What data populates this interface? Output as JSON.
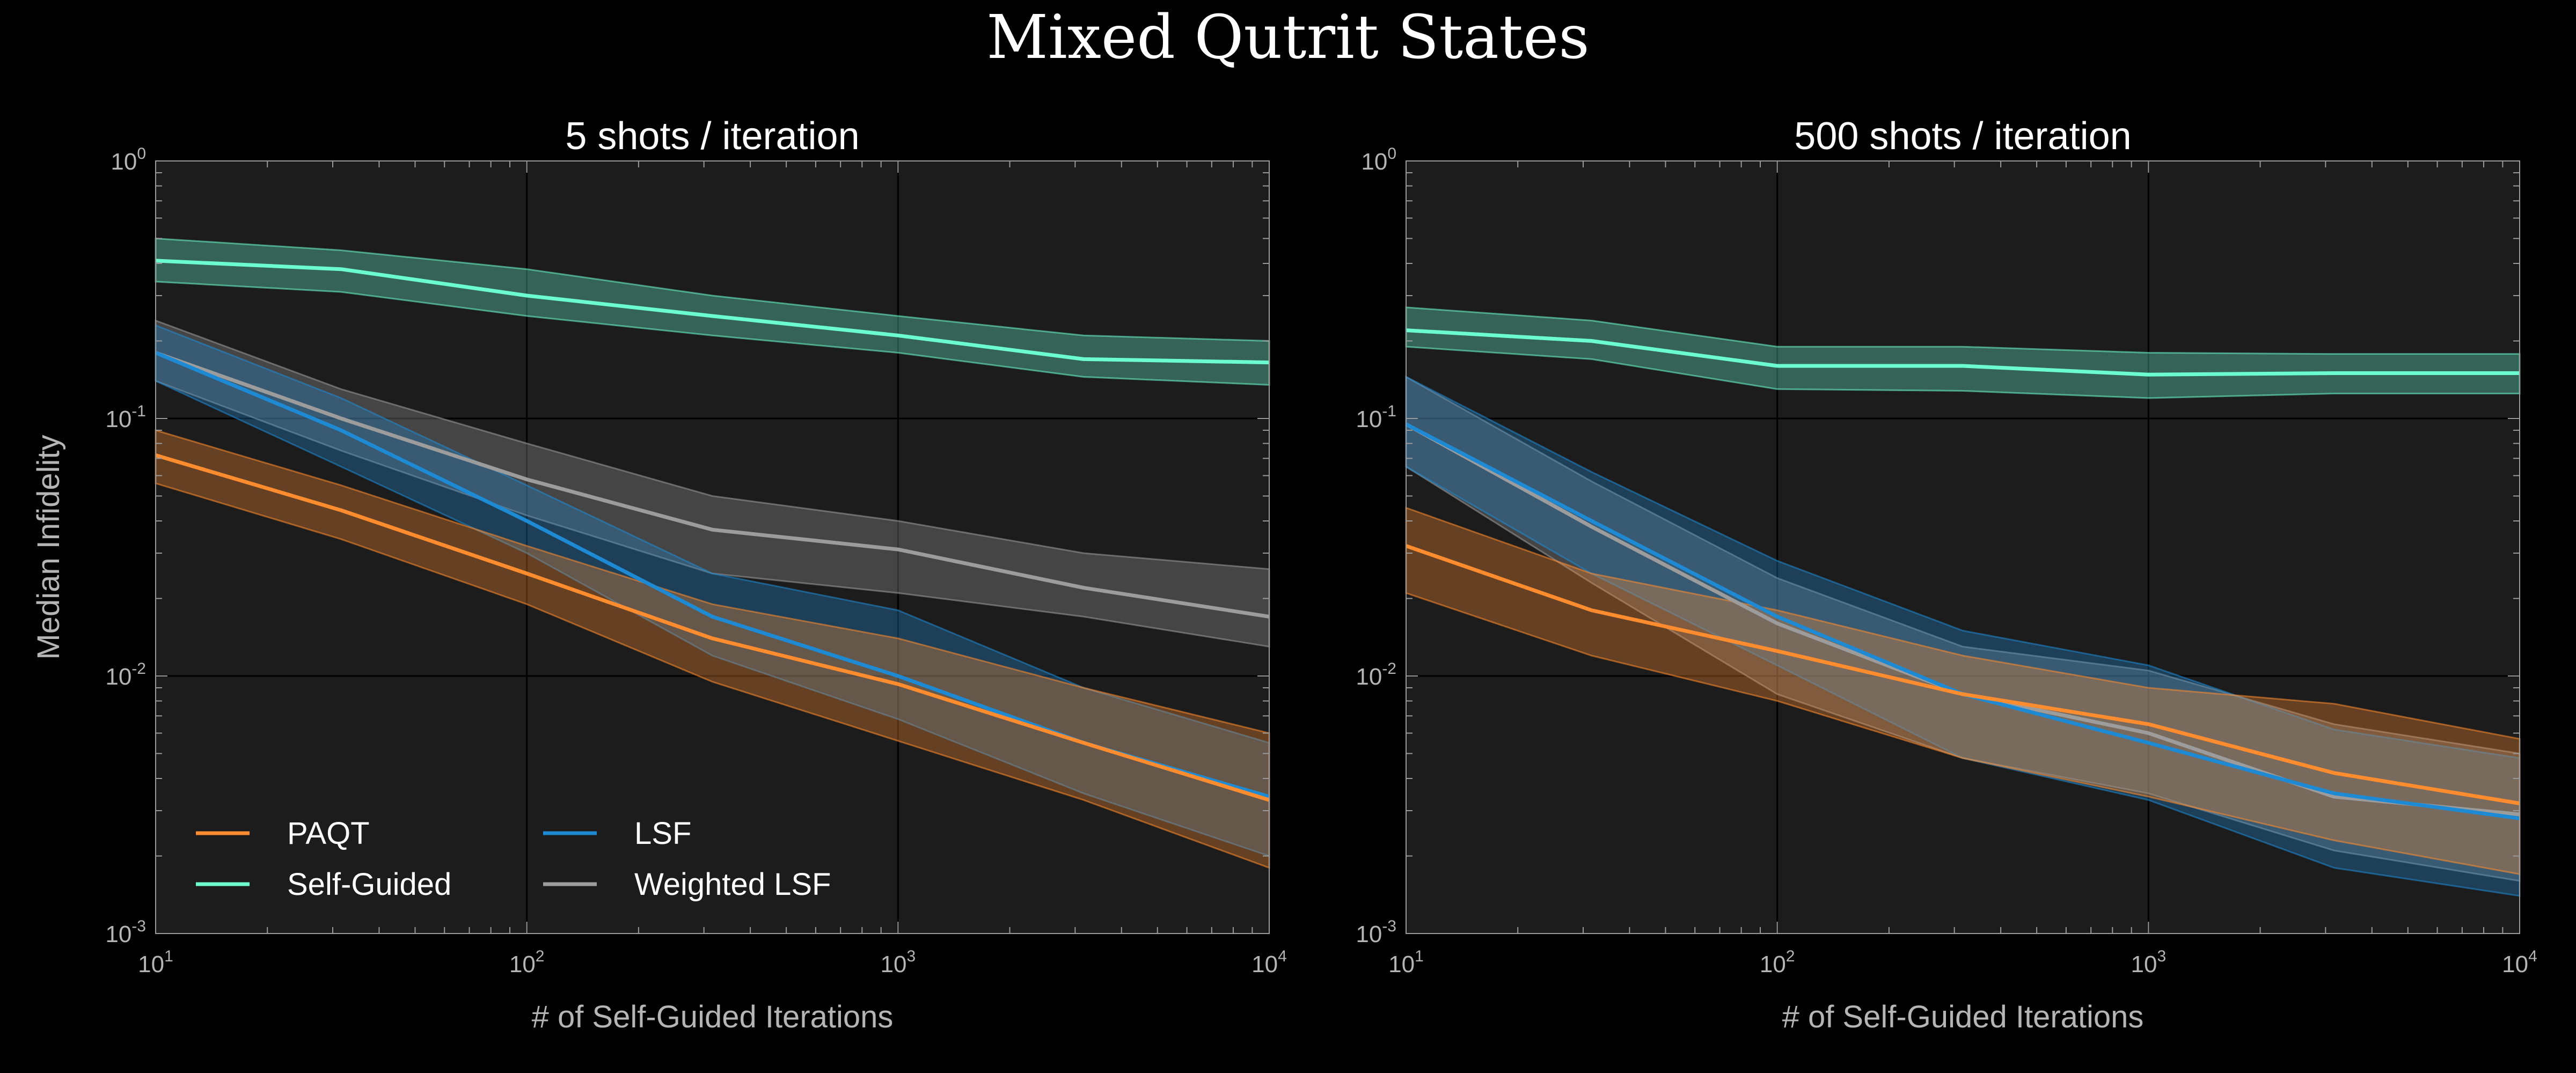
{
  "figure_title": "Mixed Qutrit States",
  "chart_data": [
    {
      "type": "line",
      "title": "5 shots / iteration",
      "xlabel": "# of Self-Guided Iterations",
      "ylabel": "Median Infidelity",
      "xscale": "log",
      "yscale": "log",
      "xlim": [
        10,
        10000
      ],
      "ylim": [
        0.001,
        1
      ],
      "x_ticks": [
        {
          "base": "10",
          "exp": "1"
        },
        {
          "base": "10",
          "exp": "2"
        },
        {
          "base": "10",
          "exp": "3"
        },
        {
          "base": "10",
          "exp": "4"
        }
      ],
      "y_ticks": [
        {
          "base": "10",
          "exp": "0"
        },
        {
          "base": "10",
          "exp": "-1"
        },
        {
          "base": "10",
          "exp": "-2"
        },
        {
          "base": "10",
          "exp": "-3"
        }
      ],
      "grid": true,
      "legend_position": "lower-left",
      "x": [
        10,
        31.6,
        100,
        316,
        1000,
        3162,
        10000
      ],
      "series": [
        {
          "name": "PAQT",
          "color": "#ff8c2e",
          "values": [
            0.072,
            0.044,
            0.025,
            0.014,
            0.0093,
            0.0055,
            0.0033
          ],
          "lower": [
            0.056,
            0.034,
            0.019,
            0.0095,
            0.0056,
            0.0033,
            0.0018
          ],
          "upper": [
            0.09,
            0.055,
            0.032,
            0.019,
            0.014,
            0.009,
            0.006
          ]
        },
        {
          "name": "Self-Guided",
          "color": "#6bfcd0",
          "values": [
            0.41,
            0.38,
            0.3,
            0.25,
            0.21,
            0.17,
            0.165
          ],
          "lower": [
            0.34,
            0.31,
            0.25,
            0.21,
            0.18,
            0.145,
            0.135
          ],
          "upper": [
            0.5,
            0.45,
            0.38,
            0.3,
            0.25,
            0.21,
            0.2
          ]
        },
        {
          "name": "LSF",
          "color": "#1f8ad4",
          "values": [
            0.18,
            0.09,
            0.04,
            0.017,
            0.01,
            0.0055,
            0.0034
          ],
          "lower": [
            0.14,
            0.065,
            0.03,
            0.012,
            0.0068,
            0.0035,
            0.002
          ],
          "upper": [
            0.23,
            0.12,
            0.055,
            0.025,
            0.018,
            0.009,
            0.0055
          ]
        },
        {
          "name": "Weighted LSF",
          "color": "#9c9c9c",
          "values": [
            0.18,
            0.1,
            0.058,
            0.037,
            0.031,
            0.022,
            0.017
          ],
          "lower": [
            0.14,
            0.075,
            0.042,
            0.025,
            0.021,
            0.017,
            0.013
          ],
          "upper": [
            0.24,
            0.13,
            0.08,
            0.05,
            0.04,
            0.03,
            0.026
          ]
        }
      ]
    },
    {
      "type": "line",
      "title": "500 shots / iteration",
      "xlabel": "# of Self-Guided Iterations",
      "ylabel": "",
      "xscale": "log",
      "yscale": "log",
      "xlim": [
        10,
        10000
      ],
      "ylim": [
        0.001,
        1
      ],
      "x_ticks": [
        {
          "base": "10",
          "exp": "1"
        },
        {
          "base": "10",
          "exp": "2"
        },
        {
          "base": "10",
          "exp": "3"
        },
        {
          "base": "10",
          "exp": "4"
        }
      ],
      "y_ticks": [
        {
          "base": "10",
          "exp": "0"
        },
        {
          "base": "10",
          "exp": "-1"
        },
        {
          "base": "10",
          "exp": "-2"
        },
        {
          "base": "10",
          "exp": "-3"
        }
      ],
      "grid": true,
      "x": [
        10,
        31.6,
        100,
        316,
        1000,
        3162,
        10000
      ],
      "series": [
        {
          "name": "PAQT",
          "color": "#ff8c2e",
          "values": [
            0.032,
            0.018,
            0.0125,
            0.0085,
            0.0065,
            0.0042,
            0.0032
          ],
          "lower": [
            0.021,
            0.012,
            0.008,
            0.0048,
            0.0034,
            0.0023,
            0.0017
          ],
          "upper": [
            0.045,
            0.025,
            0.018,
            0.012,
            0.009,
            0.0078,
            0.0057
          ]
        },
        {
          "name": "Self-Guided",
          "color": "#6bfcd0",
          "values": [
            0.22,
            0.2,
            0.16,
            0.16,
            0.148,
            0.15,
            0.15
          ],
          "lower": [
            0.19,
            0.17,
            0.13,
            0.128,
            0.12,
            0.125,
            0.125
          ],
          "upper": [
            0.27,
            0.24,
            0.19,
            0.19,
            0.18,
            0.178,
            0.178
          ]
        },
        {
          "name": "LSF",
          "color": "#1f8ad4",
          "values": [
            0.095,
            0.04,
            0.017,
            0.0085,
            0.0055,
            0.0035,
            0.0028
          ],
          "lower": [
            0.065,
            0.025,
            0.011,
            0.0048,
            0.0033,
            0.0018,
            0.0014
          ],
          "upper": [
            0.145,
            0.062,
            0.028,
            0.015,
            0.011,
            0.0062,
            0.0048
          ]
        },
        {
          "name": "Weighted LSF",
          "color": "#9c9c9c",
          "values": [
            0.095,
            0.038,
            0.016,
            0.0085,
            0.006,
            0.0034,
            0.0029
          ],
          "lower": [
            0.065,
            0.023,
            0.0085,
            0.0048,
            0.0035,
            0.0021,
            0.0016
          ],
          "upper": [
            0.145,
            0.057,
            0.024,
            0.013,
            0.0105,
            0.0065,
            0.005
          ]
        }
      ]
    }
  ]
}
